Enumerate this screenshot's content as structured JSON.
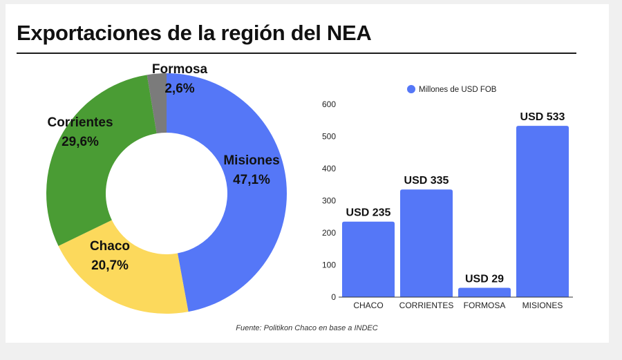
{
  "title": "Exportaciones de la región del NEA",
  "source": "Fuente: Politikon Chaco en base a INDEC",
  "colors": {
    "Misiones": "#5577f7",
    "Chaco": "#fcd95c",
    "Corrientes": "#4a9c34",
    "Formosa": "#7b7b7b",
    "bar": "#5577f7"
  },
  "chart_data": [
    {
      "type": "pie",
      "variant": "donut",
      "slices": [
        {
          "label": "Misiones",
          "value": 47.1,
          "value_label": "47,1%"
        },
        {
          "label": "Chaco",
          "value": 20.7,
          "value_label": "20,7%"
        },
        {
          "label": "Corrientes",
          "value": 29.6,
          "value_label": "29,6%"
        },
        {
          "label": "Formosa",
          "value": 2.6,
          "value_label": "2,6%"
        }
      ]
    },
    {
      "type": "bar",
      "legend": {
        "label": "Millones de USD FOB",
        "position": "top"
      },
      "categories": [
        "CHACO",
        "CORRIENTES",
        "FORMOSA",
        "MISIONES"
      ],
      "series": [
        {
          "name": "Millones de USD FOB",
          "values": [
            235,
            335,
            29,
            533
          ],
          "value_labels": [
            "USD 235",
            "USD 335",
            "USD 29",
            "USD 533"
          ]
        }
      ],
      "ylim": [
        0,
        600
      ],
      "yticks": [
        0,
        100,
        200,
        300,
        400,
        500,
        600
      ],
      "grid": false
    }
  ]
}
